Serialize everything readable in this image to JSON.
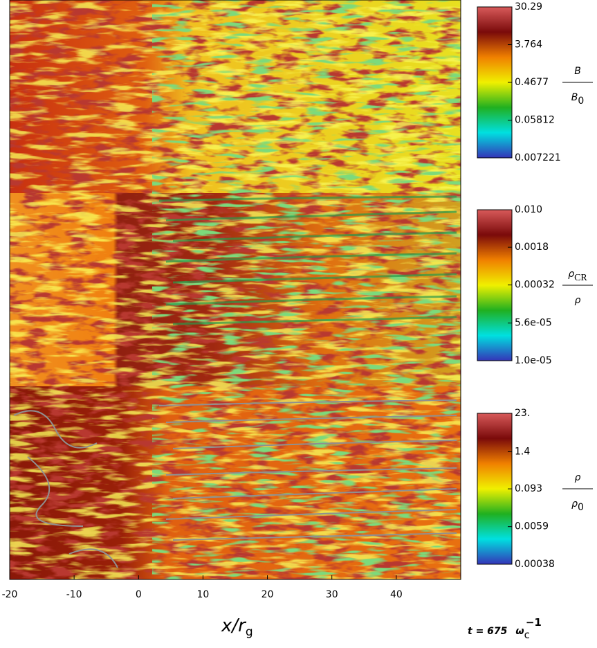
{
  "chart_data": {
    "type": "heatmap",
    "xlim": [
      -20,
      50
    ],
    "xticks": [
      -20,
      -10,
      0,
      10,
      20,
      30,
      40
    ],
    "xlabel": {
      "text": "x/r",
      "sub": "g"
    },
    "time_label": {
      "text": "t = 675",
      "symbol": "ω",
      "sub": "c",
      "sup": "−1"
    },
    "colormap": [
      "#3434b8",
      "#00e0e0",
      "#20b020",
      "#f0f000",
      "#f08000",
      "#7a0a0a",
      "#d85a5a"
    ],
    "log_scale": true,
    "panels": [
      {
        "colorbar_label": {
          "numerator": "B",
          "numerator_sub": "",
          "denominator": "B",
          "denominator_sub": "0"
        },
        "clim": [
          0.007221,
          30.29
        ],
        "cticks": [
          30.29,
          3.764,
          0.4677,
          0.05812,
          0.007221
        ]
      },
      {
        "colorbar_label": {
          "numerator": "ρ",
          "numerator_sub": "CR",
          "denominator": "ρ",
          "denominator_sub": ""
        },
        "clim": [
          1e-05,
          0.01
        ],
        "cticks": [
          {
            "value": 0.01,
            "label": "0.010"
          },
          0.0018,
          0.00032,
          {
            "value": 5.6e-05,
            "label": "5.6e-05"
          },
          {
            "value": 1e-05,
            "label": "1.0e-05"
          }
        ]
      },
      {
        "colorbar_label": {
          "numerator": "ρ",
          "numerator_sub": "",
          "denominator": "ρ",
          "denominator_sub": "0"
        },
        "clim": [
          0.00038,
          23
        ],
        "cticks": [
          {
            "value": 23,
            "label": "23."
          },
          1.4,
          0.093,
          0.0059,
          0.00038
        ]
      }
    ]
  }
}
